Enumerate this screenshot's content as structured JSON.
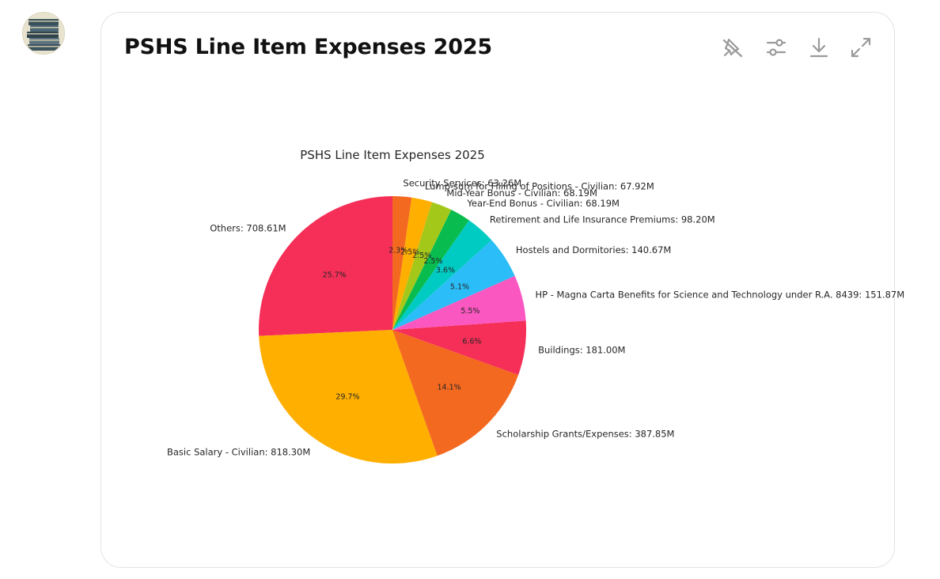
{
  "card": {
    "title": "PSHS Line Item Expenses 2025"
  },
  "toolbar": {
    "items": [
      {
        "name": "pin-off-icon"
      },
      {
        "name": "sliders-icon"
      },
      {
        "name": "download-icon"
      },
      {
        "name": "expand-icon"
      }
    ]
  },
  "chart_data": {
    "type": "pie",
    "title": "PSHS Line Item Expenses 2025",
    "start_angle_deg": 90,
    "direction": "counterclockwise",
    "slices": [
      {
        "label": "Others: 708.61M",
        "value": 708.61,
        "pct": "25.7%",
        "color": "#f52f57"
      },
      {
        "label": "Basic Salary - Civilian: 818.30M",
        "value": 818.3,
        "pct": "29.7%",
        "color": "#ffaf00"
      },
      {
        "label": "Scholarship Grants/Expenses: 387.85M",
        "value": 387.85,
        "pct": "14.1%",
        "color": "#f46920"
      },
      {
        "label": "Buildings: 181.00M",
        "value": 181.0,
        "pct": "6.6%",
        "color": "#f52f57"
      },
      {
        "label": "HP - Magna Carta Benefits for Science and Technology under R.A. 8439: 151.87M",
        "value": 151.87,
        "pct": "5.5%",
        "color": "#fa57c1"
      },
      {
        "label": "Hostels and Dormitories: 140.67M",
        "value": 140.67,
        "pct": "5.1%",
        "color": "#2bbdf7"
      },
      {
        "label": "Retirement and Life Insurance Premiums: 98.20M",
        "value": 98.2,
        "pct": "3.6%",
        "color": "#00cbc3"
      },
      {
        "label": "Year-End Bonus - Civilian: 68.19M",
        "value": 68.19,
        "pct": "2.5%",
        "color": "#08bc4f"
      },
      {
        "label": "Mid-Year Bonus - Civilian: 68.19M",
        "value": 68.19,
        "pct": "2.5%",
        "color": "#a3c81a"
      },
      {
        "label": "Lump-sum for Filling of Positions - Civilian: 67.92M",
        "value": 67.92,
        "pct": "2.5%",
        "color": "#ffaf00"
      },
      {
        "label": "Security Services: 63.26M",
        "value": 63.26,
        "pct": "2.3%",
        "color": "#f46920"
      }
    ]
  }
}
